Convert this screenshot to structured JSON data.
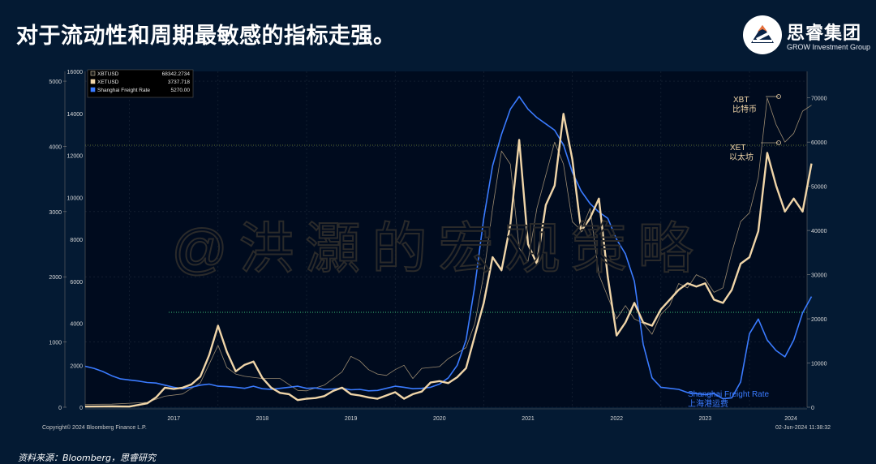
{
  "header": {
    "title": "对于流动性和周期最敏感的指标走强。",
    "logo_name": "思睿集团",
    "logo_en": "GROW Investment Group"
  },
  "watermark": "@洪灝的宏观策略",
  "footer": {
    "source": "资料来源：Bloomberg，思睿研究"
  },
  "chart_data": {
    "type": "line",
    "x_labels": [
      "2017",
      "2018",
      "2019",
      "2020",
      "2021",
      "2022",
      "2023",
      "2024"
    ],
    "axis_left_outer": {
      "ticks": [
        0,
        1000,
        2000,
        3000,
        4000,
        5000
      ],
      "series": "XETUSD",
      "ylim": [
        0,
        5150
      ]
    },
    "axis_left_inner": {
      "ticks": [
        0,
        2000,
        4000,
        6000,
        8000,
        10000,
        12000,
        14000,
        16000
      ],
      "series": "Shanghai Freight Rate",
      "ylim": [
        0,
        16000
      ]
    },
    "axis_right": {
      "ticks": [
        0,
        10000,
        20000,
        30000,
        40000,
        50000,
        60000,
        70000
      ],
      "series": "XBTUSD",
      "ylim": [
        0,
        76000
      ]
    },
    "legend": [
      {
        "name": "XBTUSD",
        "value": "68342.2734",
        "color": "#1a1a1a",
        "border": "#d8c8a8"
      },
      {
        "name": "XETUSD",
        "value": "3737.718",
        "color": "#f0d5a8",
        "border": "#f0d5a8"
      },
      {
        "name": "Shanghai Freight Rate",
        "value": "5270.00",
        "color": "#3a7bff",
        "border": "#3a7bff"
      }
    ],
    "annotations": [
      {
        "line1": "XBT",
        "line2": "比特币"
      },
      {
        "line1": "XET",
        "line2": "以太坊"
      },
      {
        "line1": "Shanghai Freight Rate",
        "line2": "上海港运费"
      }
    ],
    "copyright": "Copyright© 2024 Bloomberg Finance L.P.",
    "timestamp": "02-Jun-2024 11:38:32",
    "series": [
      {
        "name": "Shanghai Freight Rate",
        "color": "#3a7bff",
        "axis": "inner",
        "points": [
          [
            2016.5,
            1950
          ],
          [
            2016.6,
            1850
          ],
          [
            2016.7,
            1700
          ],
          [
            2016.8,
            1500
          ],
          [
            2016.9,
            1350
          ],
          [
            2017.0,
            1300
          ],
          [
            2017.1,
            1250
          ],
          [
            2017.2,
            1180
          ],
          [
            2017.3,
            1150
          ],
          [
            2017.4,
            1050
          ],
          [
            2017.5,
            950
          ],
          [
            2017.6,
            880
          ],
          [
            2017.7,
            950
          ],
          [
            2017.8,
            1050
          ],
          [
            2017.9,
            1100
          ],
          [
            2018.0,
            1000
          ],
          [
            2018.1,
            980
          ],
          [
            2018.2,
            950
          ],
          [
            2018.3,
            900
          ],
          [
            2018.4,
            1000
          ],
          [
            2018.5,
            880
          ],
          [
            2018.6,
            850
          ],
          [
            2018.7,
            900
          ],
          [
            2018.8,
            950
          ],
          [
            2018.9,
            1000
          ],
          [
            2019.0,
            900
          ],
          [
            2019.1,
            920
          ],
          [
            2019.2,
            850
          ],
          [
            2019.3,
            870
          ],
          [
            2019.4,
            900
          ],
          [
            2019.5,
            830
          ],
          [
            2019.6,
            850
          ],
          [
            2019.7,
            780
          ],
          [
            2019.8,
            800
          ],
          [
            2019.9,
            900
          ],
          [
            2020.0,
            1000
          ],
          [
            2020.1,
            950
          ],
          [
            2020.2,
            880
          ],
          [
            2020.3,
            900
          ],
          [
            2020.4,
            950
          ],
          [
            2020.5,
            1100
          ],
          [
            2020.6,
            1400
          ],
          [
            2020.7,
            2000
          ],
          [
            2020.8,
            3200
          ],
          [
            2020.9,
            5800
          ],
          [
            2021.0,
            9000
          ],
          [
            2021.1,
            11500
          ],
          [
            2021.2,
            13000
          ],
          [
            2021.3,
            14200
          ],
          [
            2021.4,
            14800
          ],
          [
            2021.5,
            14200
          ],
          [
            2021.6,
            13800
          ],
          [
            2021.7,
            13500
          ],
          [
            2021.8,
            13200
          ],
          [
            2021.9,
            12500
          ],
          [
            2022.0,
            11200
          ],
          [
            2022.1,
            10300
          ],
          [
            2022.2,
            9700
          ],
          [
            2022.3,
            9300
          ],
          [
            2022.4,
            9000
          ],
          [
            2022.5,
            8000
          ],
          [
            2022.6,
            7300
          ],
          [
            2022.7,
            6000
          ],
          [
            2022.8,
            3000
          ],
          [
            2022.9,
            1400
          ],
          [
            2023.0,
            950
          ],
          [
            2023.1,
            900
          ],
          [
            2023.2,
            850
          ],
          [
            2023.3,
            700
          ],
          [
            2023.4,
            650
          ],
          [
            2023.5,
            600
          ],
          [
            2023.6,
            650
          ],
          [
            2023.7,
            400
          ],
          [
            2023.8,
            450
          ],
          [
            2023.9,
            1200
          ],
          [
            2024.0,
            3500
          ],
          [
            2024.1,
            4200
          ],
          [
            2024.2,
            3200
          ],
          [
            2024.3,
            2700
          ],
          [
            2024.4,
            2400
          ],
          [
            2024.5,
            3200
          ],
          [
            2024.6,
            4500
          ],
          [
            2024.7,
            5270
          ]
        ]
      },
      {
        "name": "XETUSD",
        "color": "#f0d5a8",
        "axis": "outer",
        "points": [
          [
            2016.5,
            10
          ],
          [
            2016.8,
            12
          ],
          [
            2017.0,
            10
          ],
          [
            2017.2,
            60
          ],
          [
            2017.3,
            150
          ],
          [
            2017.4,
            300
          ],
          [
            2017.5,
            280
          ],
          [
            2017.6,
            300
          ],
          [
            2017.7,
            350
          ],
          [
            2017.8,
            470
          ],
          [
            2017.9,
            800
          ],
          [
            2018.0,
            1250
          ],
          [
            2018.1,
            850
          ],
          [
            2018.2,
            550
          ],
          [
            2018.3,
            650
          ],
          [
            2018.4,
            700
          ],
          [
            2018.5,
            450
          ],
          [
            2018.6,
            300
          ],
          [
            2018.7,
            220
          ],
          [
            2018.8,
            200
          ],
          [
            2018.9,
            110
          ],
          [
            2019.0,
            130
          ],
          [
            2019.1,
            140
          ],
          [
            2019.2,
            170
          ],
          [
            2019.3,
            250
          ],
          [
            2019.4,
            300
          ],
          [
            2019.5,
            200
          ],
          [
            2019.6,
            180
          ],
          [
            2019.7,
            150
          ],
          [
            2019.8,
            130
          ],
          [
            2019.9,
            180
          ],
          [
            2020.0,
            230
          ],
          [
            2020.1,
            130
          ],
          [
            2020.2,
            200
          ],
          [
            2020.3,
            240
          ],
          [
            2020.4,
            380
          ],
          [
            2020.5,
            400
          ],
          [
            2020.6,
            370
          ],
          [
            2020.7,
            460
          ],
          [
            2020.8,
            600
          ],
          [
            2020.9,
            1100
          ],
          [
            2021.0,
            1600
          ],
          [
            2021.1,
            2300
          ],
          [
            2021.2,
            2100
          ],
          [
            2021.3,
            2800
          ],
          [
            2021.4,
            4100
          ],
          [
            2021.5,
            2500
          ],
          [
            2021.6,
            2200
          ],
          [
            2021.7,
            3100
          ],
          [
            2021.8,
            3400
          ],
          [
            2021.9,
            4500
          ],
          [
            2022.0,
            3800
          ],
          [
            2022.1,
            2700
          ],
          [
            2022.2,
            2900
          ],
          [
            2022.3,
            3200
          ],
          [
            2022.4,
            2000
          ],
          [
            2022.5,
            1100
          ],
          [
            2022.6,
            1300
          ],
          [
            2022.7,
            1600
          ],
          [
            2022.8,
            1300
          ],
          [
            2022.9,
            1250
          ],
          [
            2023.0,
            1500
          ],
          [
            2023.1,
            1650
          ],
          [
            2023.2,
            1800
          ],
          [
            2023.3,
            1900
          ],
          [
            2023.4,
            1850
          ],
          [
            2023.5,
            1900
          ],
          [
            2023.6,
            1650
          ],
          [
            2023.7,
            1600
          ],
          [
            2023.8,
            1800
          ],
          [
            2023.9,
            2200
          ],
          [
            2024.0,
            2300
          ],
          [
            2024.1,
            2700
          ],
          [
            2024.2,
            3900
          ],
          [
            2024.3,
            3400
          ],
          [
            2024.4,
            3000
          ],
          [
            2024.5,
            3200
          ],
          [
            2024.6,
            3000
          ],
          [
            2024.7,
            3737
          ]
        ]
      },
      {
        "name": "XBTUSD",
        "color": "#9a8a70",
        "axis": "right",
        "points": [
          [
            2016.5,
            650
          ],
          [
            2016.8,
            700
          ],
          [
            2017.0,
            900
          ],
          [
            2017.2,
            1100
          ],
          [
            2017.4,
            2500
          ],
          [
            2017.6,
            3000
          ],
          [
            2017.8,
            5500
          ],
          [
            2018.0,
            14000
          ],
          [
            2018.1,
            9000
          ],
          [
            2018.2,
            7500
          ],
          [
            2018.3,
            7000
          ],
          [
            2018.5,
            6500
          ],
          [
            2018.7,
            6500
          ],
          [
            2018.9,
            3800
          ],
          [
            2019.0,
            3700
          ],
          [
            2019.2,
            5000
          ],
          [
            2019.4,
            8000
          ],
          [
            2019.5,
            11500
          ],
          [
            2019.6,
            10500
          ],
          [
            2019.7,
            8500
          ],
          [
            2019.8,
            7500
          ],
          [
            2019.9,
            7200
          ],
          [
            2020.0,
            8500
          ],
          [
            2020.1,
            9500
          ],
          [
            2020.2,
            6500
          ],
          [
            2020.3,
            8800
          ],
          [
            2020.5,
            9200
          ],
          [
            2020.6,
            11000
          ],
          [
            2020.8,
            13500
          ],
          [
            2020.9,
            19000
          ],
          [
            2021.0,
            30000
          ],
          [
            2021.1,
            45000
          ],
          [
            2021.2,
            58000
          ],
          [
            2021.3,
            55000
          ],
          [
            2021.4,
            36000
          ],
          [
            2021.5,
            33000
          ],
          [
            2021.6,
            45000
          ],
          [
            2021.8,
            60000
          ],
          [
            2021.9,
            55000
          ],
          [
            2022.0,
            42000
          ],
          [
            2022.1,
            40000
          ],
          [
            2022.2,
            45000
          ],
          [
            2022.3,
            30000
          ],
          [
            2022.5,
            20000
          ],
          [
            2022.6,
            23000
          ],
          [
            2022.7,
            20000
          ],
          [
            2022.8,
            19000
          ],
          [
            2022.9,
            16500
          ],
          [
            2023.0,
            21000
          ],
          [
            2023.1,
            23000
          ],
          [
            2023.2,
            28000
          ],
          [
            2023.3,
            27000
          ],
          [
            2023.4,
            30000
          ],
          [
            2023.5,
            29000
          ],
          [
            2023.6,
            26000
          ],
          [
            2023.7,
            27000
          ],
          [
            2023.8,
            35000
          ],
          [
            2023.9,
            42000
          ],
          [
            2024.0,
            44000
          ],
          [
            2024.1,
            52000
          ],
          [
            2024.2,
            70000
          ],
          [
            2024.3,
            64000
          ],
          [
            2024.4,
            60000
          ],
          [
            2024.5,
            62000
          ],
          [
            2024.6,
            67000
          ],
          [
            2024.7,
            68342
          ]
        ]
      }
    ]
  }
}
